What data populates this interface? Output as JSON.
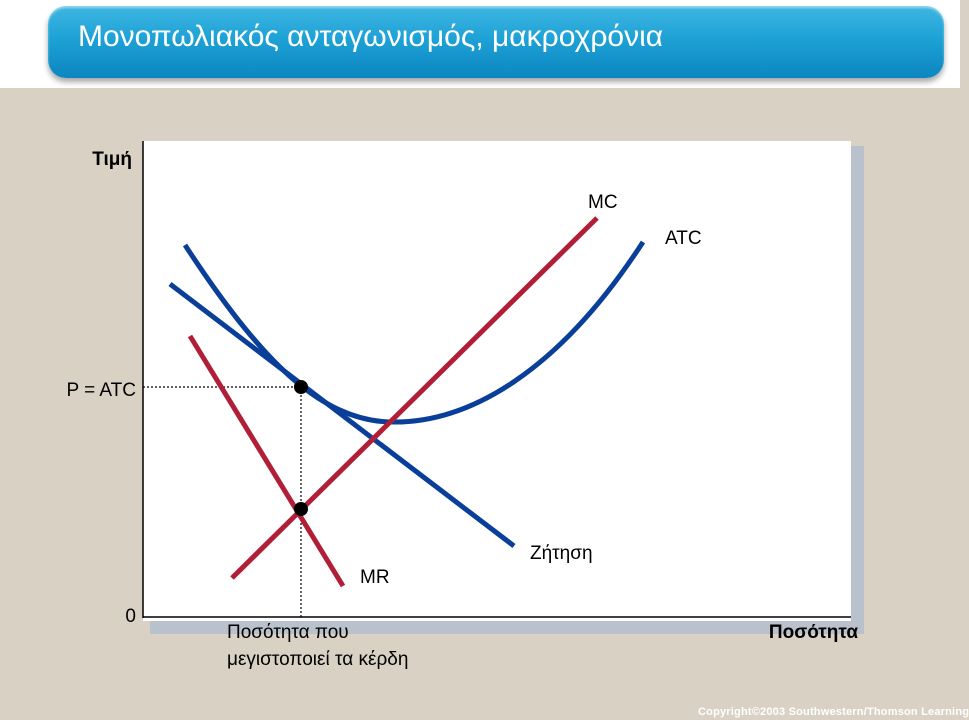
{
  "slide": {
    "title": "Μονοπωλιακός ανταγωνισμός, μακροχρόνια",
    "copyright": "Copyright©2003  Southwestern/Thomson Learning"
  },
  "diagram": {
    "y_axis_label": "Τιμή",
    "x_axis_label": "Ποσότητα",
    "origin_label": "0",
    "price_label": "P = ATC",
    "quantity_label_line1": "Ποσότητα που",
    "quantity_label_line2": "μεγιστοποιεί τα κέρδη",
    "curves": {
      "mc": "MC",
      "atc": "ATC",
      "demand": "Ζήτηση",
      "mr": "MR"
    },
    "colors": {
      "blue_curves": "#0a3f99",
      "red_curves": "#b01f37",
      "axis": "#000000"
    }
  }
}
